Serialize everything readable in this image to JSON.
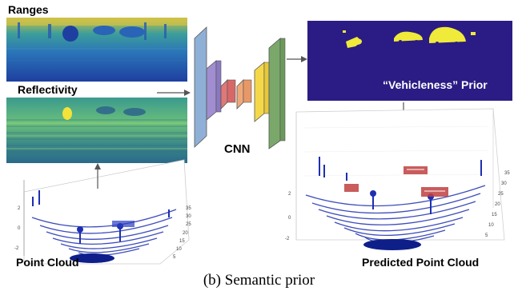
{
  "labels": {
    "ranges": "Ranges",
    "reflectivity": "Reflectivity",
    "cnn": "CNN",
    "prior": "“Vehicleness” Prior",
    "point_cloud": "Point Cloud",
    "predicted_point_cloud": "Predicted Point Cloud"
  },
  "caption": "(b) Semantic prior",
  "left_plot": {
    "y_ticks": [
      "2",
      "0",
      "-2"
    ],
    "x_ticks": [
      "35",
      "30",
      "25",
      "20",
      "15",
      "10",
      "5"
    ]
  },
  "right_plot": {
    "y_ticks": [
      "2",
      "0",
      "-2"
    ],
    "x_ticks": [
      "35",
      "30",
      "25",
      "20",
      "15",
      "10",
      "5"
    ]
  },
  "colors": {
    "cnn_frame": "#8fb0d6",
    "cnn_purple": "#a08ed0",
    "cnn_red": "#e07878",
    "cnn_orange": "#f0a878",
    "cnn_yellow": "#f4d84a",
    "cnn_green": "#7aa86a",
    "prior_bg": "#2a1c84",
    "prior_car": "#f0ea3a",
    "points": "#1d2fb0",
    "car_points": "#c04040"
  }
}
